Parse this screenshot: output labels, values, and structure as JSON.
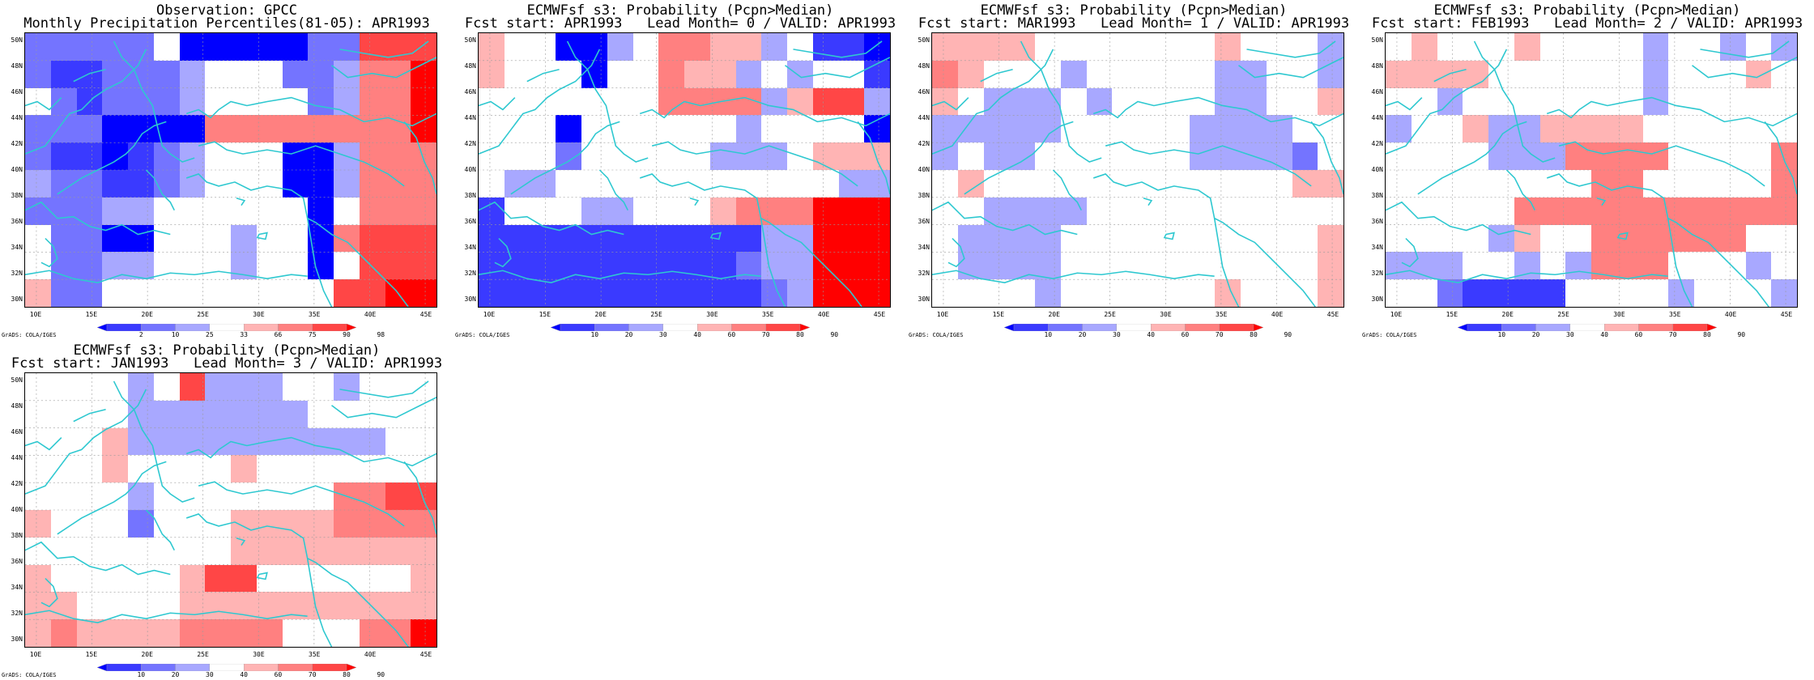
{
  "colorbar": {
    "colors": [
      "#0000ff",
      "#3a3aff",
      "#7474ff",
      "#a8a8ff",
      "#ffffff",
      "#ffb4b4",
      "#ff8080",
      "#ff4646",
      "#ff0000"
    ]
  },
  "latitude_labels": [
    "50N",
    "48N",
    "46N",
    "44N",
    "42N",
    "40N",
    "38N",
    "36N",
    "34N",
    "32N",
    "30N"
  ],
  "longitude_labels": [
    "10E",
    "15E",
    "20E",
    "25E",
    "30E",
    "35E",
    "40E",
    "45E"
  ],
  "credit": "GrADS: COLA/IGES",
  "panels": [
    {
      "title_line1": "Observation: GPCC",
      "title_line2": "Monthly Precipitation Percentiles(81-05): APR1993",
      "colorbar_ticks": [
        "2",
        "10",
        "25",
        "33",
        "66",
        "75",
        "90",
        "98"
      ],
      "grid": [
        "2222240000022777",
        "2112223444223668",
        "4212223444423668",
        "2220000666666668",
        "2110123444003666",
        "3221123444003666",
        "2223344444404666",
        "4220044434406777",
        "4223344434404777",
        "5224444444447788"
      ]
    },
    {
      "title_line1": "ECMWFsf s3: Probability (Pcpn>Median)",
      "title_line2": "Fcst start: APR1993   Lead Month= 0 / VALID: APR1993",
      "colorbar_ticks": [
        "10",
        "20",
        "30",
        "40",
        "60",
        "70",
        "80",
        "90"
      ],
      "grid": [
        "5440034665534110",
        "5444044655343441",
        "4444444666635773",
        "4440444444344440",
        "4442444443334555",
        "4334444444444433",
        "1444334445666888",
        "1111111111133888",
        "1111111111233888",
        "1111111111123888"
      ]
    },
    {
      "title_line1": "ECMWFsf s3: Probability (Pcpn>Median)",
      "title_line2": "Fcst start: MAR1993   Lead Month= 1 / VALID: APR1993",
      "colorbar_ticks": [
        "10",
        "20",
        "30",
        "40",
        "60",
        "70",
        "80",
        "90"
      ],
      "grid": [
        "5555444444454443",
        "6544434444433443",
        "5433343444433445",
        "3333344444333344",
        "3433444444333324",
        "4544444444444455",
        "4433334444444444",
        "4333344444444445",
        "4333344444444445",
        "4444344444454445"
      ]
    },
    {
      "title_line1": "ECMWFsf s3: Probability (Pcpn>Median)",
      "title_line2": "Fcst start: FEB1993   Lead Month= 2 / VALID: APR1993",
      "colorbar_ticks": [
        "10",
        "20",
        "30",
        "40",
        "60",
        "70",
        "80",
        "90"
      ],
      "grid": [
        "4544454444344343",
        "5555444444344454",
        "4434444444344444",
        "3445335555444444",
        "4444333666644446",
        "4444444466444446",
        "4444466666666666",
        "4444354466666644",
        "3334434366644434",
        "4421111444434443"
      ]
    },
    {
      "title_line1": "ECMWFsf s3: Probability (Pcpn>Median)",
      "title_line2": "Fcst start: JAN1993   Lead Month= 3 / VALID: APR1993",
      "colorbar_ticks": [
        "10",
        "20",
        "30",
        "40",
        "60",
        "70",
        "80",
        "90"
      ],
      "grid": [
        "4444347333443444",
        "4444333333344444",
        "4445333333333344",
        "4445444454444444",
        "4444344444446677",
        "5444244455556666",
        "4444444455555555",
        "5444445774444445",
        "5544445555555555",
        "5655556666444668"
      ]
    }
  ]
}
